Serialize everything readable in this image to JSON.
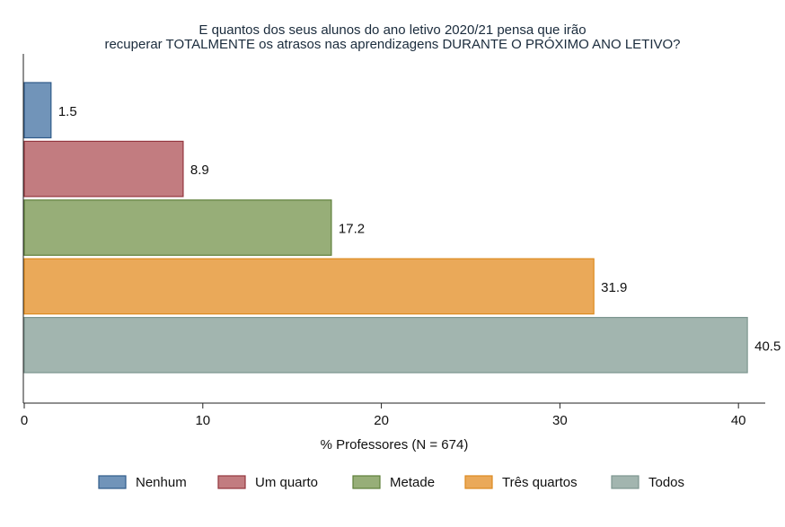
{
  "chart_data": {
    "type": "bar",
    "orientation": "horizontal",
    "title": "E quantos dos seus alunos do ano letivo 2020/21 pensa que irão\nrecuperar TOTALMENTE os atrasos nas aprendizagens DURANTE O PRÓXIMO ANO LETIVO?",
    "title_lines": [
      "E quantos dos seus alunos do ano letivo 2020/21 pensa que irão",
      "recuperar TOTALMENTE os atrasos nas aprendizagens DURANTE O PRÓXIMO ANO LETIVO?"
    ],
    "xlabel": "% Professores (N = 674)",
    "ylabel": "",
    "xlim": [
      0,
      41.5
    ],
    "xticks": [
      0,
      10,
      20,
      30,
      40
    ],
    "grid": false,
    "legend_position": "bottom",
    "categories": [
      "Nenhum",
      "Um quarto",
      "Metade",
      "Três quartos",
      "Todos"
    ],
    "values": [
      1.5,
      8.9,
      17.2,
      31.9,
      40.5
    ],
    "value_labels": [
      "1.5",
      "8.9",
      "17.2",
      "31.9",
      "40.5"
    ],
    "colors": [
      "#7194b9",
      "#c27c80",
      "#97ae78",
      "#eaa959",
      "#a2b5af"
    ],
    "stroke_colors": [
      "#2f5b8a",
      "#94363e",
      "#5e7f3a",
      "#dd8a1e",
      "#7d9690"
    ]
  }
}
